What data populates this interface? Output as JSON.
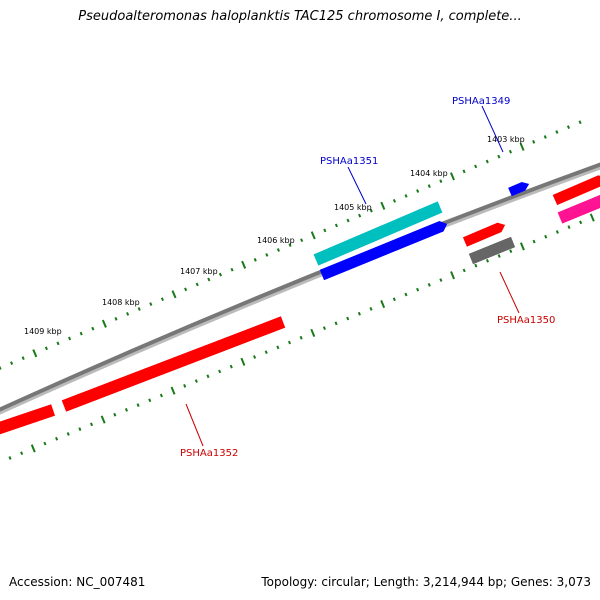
{
  "title": "Pseudoalteromonas haloplanktis TAC125 chromosome I, complete...",
  "footer": {
    "accession": "Accession: NC_007481",
    "summary": "Topology: circular; Length: 3,214,944 bp; Genes: 3,073"
  },
  "colors": {
    "tick": "#1a7a1a",
    "backbone": "#777777",
    "label_blue": "#0000cc",
    "label_red": "#cc0000"
  },
  "scale_ticks": [
    {
      "label": "1403 kbp"
    },
    {
      "label": "1404 kbp"
    },
    {
      "label": "1405 kbp"
    },
    {
      "label": "1406 kbp"
    },
    {
      "label": "1407 kbp"
    },
    {
      "label": "1408 kbp"
    },
    {
      "label": "1409 kbp"
    }
  ],
  "genes": [
    {
      "name": "PSHAa1349",
      "color": "#0000ff",
      "label_color": "#0000cc",
      "labeled": true
    },
    {
      "name": "PSHAa1350",
      "color": "#666666",
      "label_color": "#cc0000",
      "labeled": true
    },
    {
      "name": "PSHAa1351",
      "color": "#00bfbf",
      "label_color": "#0000cc",
      "labeled": true
    },
    {
      "name": "PSHAa1352",
      "color": "#ff0000",
      "label_color": "#cc0000",
      "labeled": true
    },
    {
      "name": "",
      "color": "#0000ff",
      "labeled": false
    },
    {
      "name": "",
      "color": "#ff0000",
      "labeled": false
    },
    {
      "name": "",
      "color": "#ff0000",
      "labeled": false
    },
    {
      "name": "",
      "color": "#ff0000",
      "labeled": false
    },
    {
      "name": "",
      "color": "#ff1493",
      "labeled": false
    }
  ]
}
